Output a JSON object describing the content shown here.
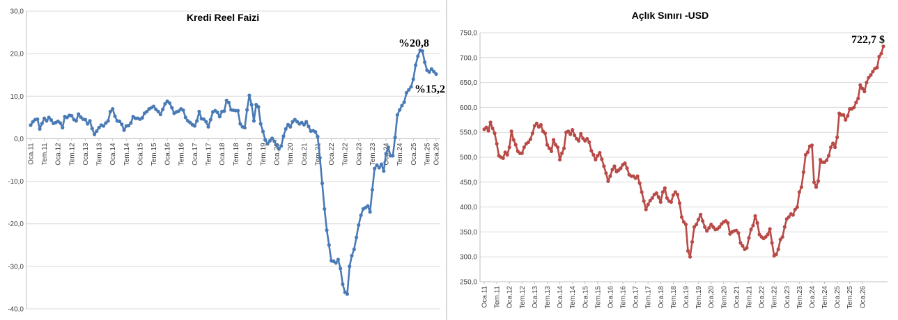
{
  "chart_data": [
    {
      "type": "line",
      "title": "Kredi Reel Faizi",
      "xlabel": "",
      "ylabel": "",
      "ylim": [
        -40,
        30
      ],
      "yticks": [
        "30,0",
        "20,0",
        "10,0",
        "0,0",
        "-10,0",
        "-20,0",
        "-30,0",
        "-40,0"
      ],
      "xticks": [
        "Oca.11",
        "Tem.11",
        "Oca.12",
        "Tem.12",
        "Oca.13",
        "Tem.13",
        "Oca.14",
        "Tem.14",
        "Oca.15",
        "Tem.15",
        "Oca.16",
        "Tem.16",
        "Oca.17",
        "Tem.17",
        "Oca.18",
        "Tem.18",
        "Oca.19",
        "Tem.19",
        "Oca.20",
        "Tem.20",
        "Oca.21",
        "Tem.21",
        "Oca.22",
        "Tem.22",
        "Oca.23",
        "Tem.23",
        "Oca.24",
        "Tem.24",
        "Oca.25",
        "Tem.25",
        "Oca.26"
      ],
      "color": "#4a7ab5",
      "grid": true,
      "annotations": [
        {
          "text": "%20,8",
          "x": "Tem.25",
          "y": 20.8
        },
        {
          "text": "%15,2",
          "x": "Oca.26",
          "y": 15.2
        }
      ],
      "series": [
        {
          "values": [
            3.2,
            4.0,
            4.5,
            4.6,
            2.3,
            3.6,
            4.8,
            4.2,
            5.0,
            4.4,
            3.6,
            3.8,
            4.1,
            3.7,
            2.6,
            5.2,
            5.0,
            5.5,
            5.4,
            4.5,
            4.2,
            5.8,
            5.1,
            4.6,
            4.5,
            3.5,
            4.2,
            2.4,
            1.0,
            1.8,
            2.6,
            3.2,
            3.0,
            3.7,
            4.2,
            6.4,
            7.0,
            5.3,
            4.2,
            4.1,
            3.4,
            2.0,
            3.0,
            3.1,
            3.7,
            5.2,
            4.8,
            4.8,
            4.6,
            4.9,
            6.0,
            6.4,
            7.0,
            7.3,
            7.6,
            6.9,
            6.4,
            5.7,
            6.9,
            8.2,
            8.8,
            8.4,
            7.3,
            6.0,
            6.3,
            6.5,
            7.0,
            6.7,
            5.0,
            4.2,
            3.8,
            3.3,
            3.0,
            4.2,
            6.4,
            4.7,
            4.6,
            4.0,
            2.8,
            4.5,
            6.3,
            6.6,
            6.2,
            5.2,
            6.4,
            6.5,
            9.0,
            8.5,
            6.8,
            6.7,
            6.6,
            6.6,
            3.5,
            2.8,
            2.6,
            6.8,
            10.2,
            8.0,
            4.2,
            8.0,
            7.5,
            3.5,
            1.7,
            -0.3,
            -1.2,
            -0.5,
            0.1,
            -0.6,
            -1.5,
            -2.4,
            -1.7,
            0.6,
            2.3,
            3.3,
            2.8,
            4.0,
            4.5,
            4.0,
            3.5,
            3.8,
            3.3,
            4.0,
            2.9,
            1.8,
            1.9,
            1.6,
            0.5,
            -4.5,
            -10.5,
            -16.5,
            -21.5,
            -25.0,
            -28.7,
            -28.8,
            -29.2,
            -28.4,
            -30.5,
            -34.2,
            -36.1,
            -36.5,
            -30.0,
            -27.5,
            -26.0,
            -23.2,
            -20.3,
            -18.0,
            -16.5,
            -16.2,
            -15.8,
            -17.2,
            -12.0,
            -7.0,
            -6.2,
            -6.8,
            -6.0,
            -7.6,
            -3.5,
            -2.0,
            -4.0,
            -4.0,
            0.3,
            5.6,
            6.8,
            7.8,
            8.6,
            10.8,
            11.5,
            12.2,
            14.0,
            17.3,
            19.4,
            20.8,
            20.6,
            18.0,
            16.1,
            15.7,
            16.4,
            15.8,
            15.2
          ]
        }
      ]
    },
    {
      "type": "line",
      "title": "Açlık Sınırı -USD",
      "xlabel": "",
      "ylabel": "",
      "ylim": [
        250,
        750
      ],
      "yticks": [
        "750,0",
        "700,0",
        "650,0",
        "600,0",
        "550,0",
        "500,0",
        "450,0",
        "400,0",
        "350,0",
        "300,0",
        "250,0"
      ],
      "xticks": [
        "Oca.11",
        "Tem.11",
        "Oca.12",
        "Tem.12",
        "Oca.13",
        "Tem.13",
        "Oca.14",
        "Tem.14",
        "Oca.15",
        "Tem.15",
        "Oca.16",
        "Tem.16",
        "Oca.17",
        "Tem.17",
        "Oca.18",
        "Tem.18",
        "Oca.19",
        "Tem.19",
        "Oca.20",
        "Tem.20",
        "Oca.21",
        "Tem.21",
        "Oca.22",
        "Tem.22",
        "Oca.23",
        "Tem.23",
        "Oca.24",
        "Tem.24",
        "Oca.25",
        "Tem.25",
        "Oca.26"
      ],
      "color": "#b84a47",
      "grid": true,
      "annotations": [
        {
          "text": "722,7 $",
          "x": "Oca.26",
          "y": 722.7
        }
      ],
      "series": [
        {
          "values": [
            556,
            560,
            553,
            570,
            558,
            548,
            527,
            503,
            500,
            498,
            510,
            505,
            520,
            552,
            535,
            525,
            512,
            508,
            508,
            520,
            527,
            530,
            536,
            548,
            563,
            568,
            561,
            565,
            552,
            548,
            525,
            518,
            512,
            535,
            525,
            520,
            495,
            508,
            518,
            550,
            552,
            546,
            555,
            544,
            537,
            533,
            547,
            538,
            533,
            537,
            530,
            513,
            505,
            495,
            503,
            509,
            496,
            482,
            468,
            452,
            462,
            475,
            482,
            471,
            474,
            478,
            485,
            488,
            478,
            465,
            462,
            462,
            458,
            462,
            448,
            430,
            412,
            395,
            405,
            413,
            418,
            425,
            428,
            420,
            410,
            430,
            438,
            418,
            412,
            410,
            424,
            430,
            425,
            408,
            380,
            370,
            365,
            312,
            300,
            330,
            360,
            365,
            375,
            385,
            372,
            360,
            352,
            358,
            365,
            360,
            355,
            356,
            360,
            366,
            370,
            372,
            368,
            346,
            350,
            352,
            353,
            348,
            328,
            322,
            315,
            318,
            338,
            355,
            363,
            382,
            368,
            345,
            340,
            337,
            340,
            345,
            356,
            328,
            302,
            305,
            315,
            335,
            340,
            360,
            376,
            380,
            386,
            384,
            395,
            400,
            430,
            440,
            470,
            505,
            510,
            522,
            524,
            450,
            440,
            452,
            495,
            490,
            490,
            494,
            503,
            520,
            528,
            520,
            540,
            588,
            585,
            585,
            575,
            583,
            597,
            597,
            600,
            610,
            618,
            645,
            638,
            632,
            650,
            660,
            665,
            672,
            678,
            680,
            702,
            708,
            722.7
          ]
        }
      ]
    }
  ]
}
